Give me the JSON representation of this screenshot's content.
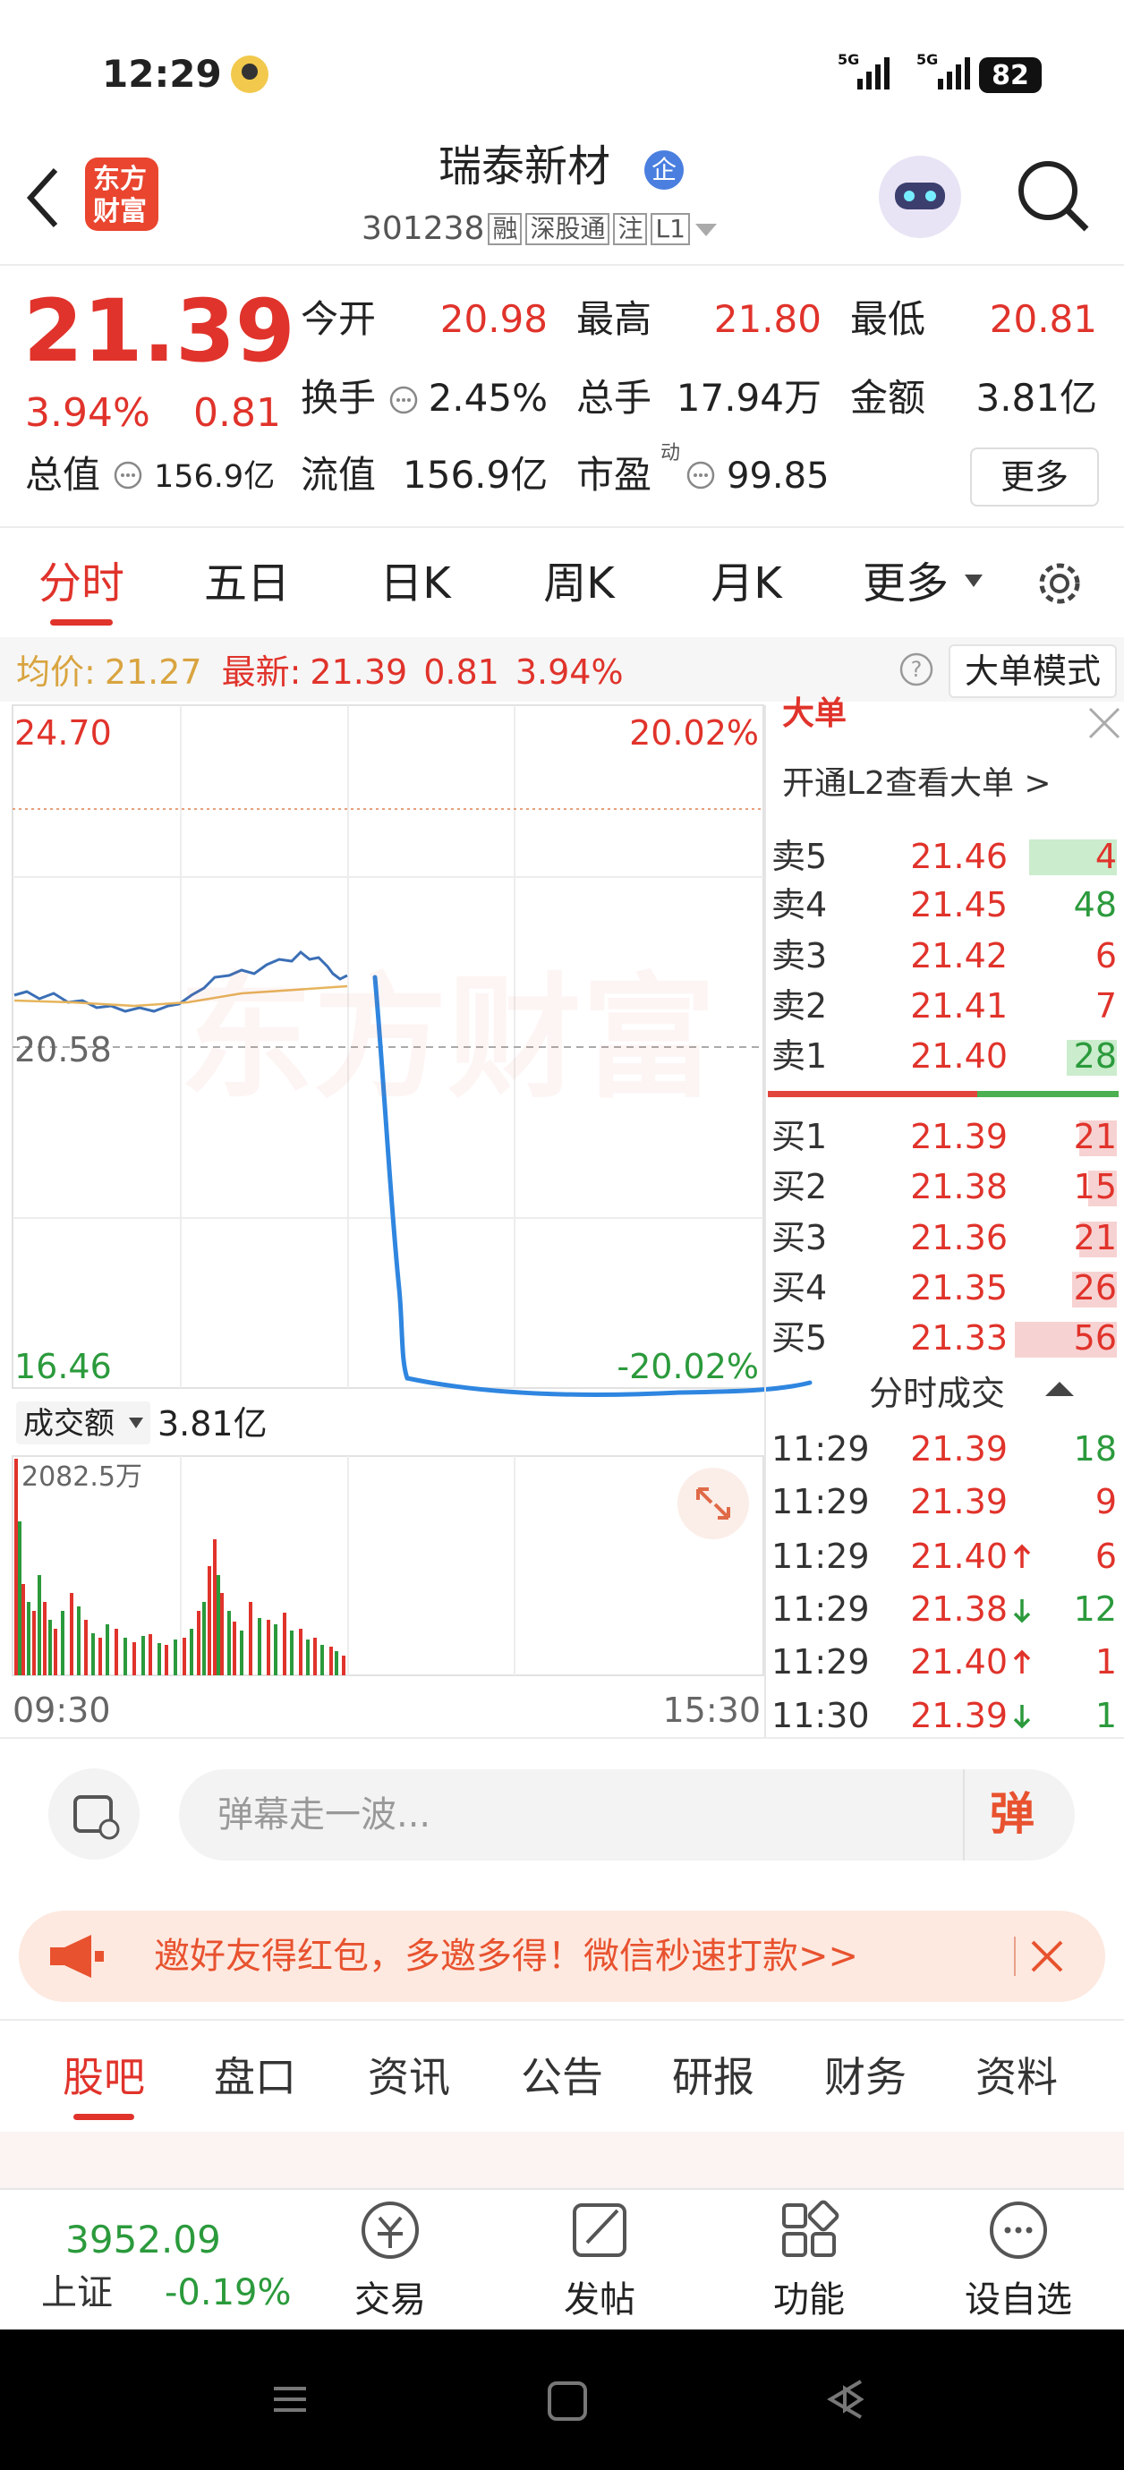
{
  "status": {
    "time": "12:29",
    "battery": "82"
  },
  "header": {
    "logo": [
      "东方",
      "财富"
    ],
    "title": "瑞泰新材",
    "badge": "企",
    "code": "301238",
    "tags": [
      "融",
      "深股通",
      "注",
      "L1"
    ]
  },
  "quote": {
    "price": "21.39",
    "change_pct": "3.94%",
    "change": "0.81",
    "stats": [
      {
        "label": "今开",
        "value": "20.98"
      },
      {
        "label": "最高",
        "value": "21.80"
      },
      {
        "label": "最低",
        "value": "20.81"
      },
      {
        "label": "换手",
        "value": "2.45%"
      },
      {
        "label": "总手",
        "value": "17.94万"
      },
      {
        "label": "金额",
        "value": "3.81亿"
      },
      {
        "label": "总值",
        "value": "156.9亿"
      },
      {
        "label": "流值",
        "value": "156.9亿"
      },
      {
        "label": "市盈",
        "value": "99.85"
      }
    ],
    "pe_note": "动",
    "more": "更多"
  },
  "tabs": [
    "分时",
    "五日",
    "日K",
    "周K",
    "月K",
    "更多"
  ],
  "info": {
    "avg_label": "均价:",
    "avg": "21.27",
    "last_label": "最新:",
    "last": "21.39",
    "change": "0.81",
    "pct": "3.94%",
    "mode": "大单模式"
  },
  "chart": {
    "top_price": "24.70",
    "top_pct": "20.02%",
    "mid_price": "20.58",
    "bottom_price": "16.46",
    "bottom_pct": "-20.02%",
    "watermark": "东方财富",
    "volume_label": "成交额",
    "volume": "3.81亿",
    "volume_max": "2082.5万",
    "time_start": "09:30",
    "time_end": "15:30"
  },
  "order_book": {
    "title": "大单",
    "l2": "开通L2查看大单 >",
    "asks": [
      [
        "卖5",
        "21.46",
        "4"
      ],
      [
        "卖4",
        "21.45",
        "48"
      ],
      [
        "卖3",
        "21.42",
        "6"
      ],
      [
        "卖2",
        "21.41",
        "7"
      ],
      [
        "卖1",
        "21.40",
        "28"
      ]
    ],
    "bids": [
      [
        "买1",
        "21.39",
        "21"
      ],
      [
        "买2",
        "21.38",
        "15"
      ],
      [
        "买3",
        "21.36",
        "21"
      ],
      [
        "买4",
        "21.35",
        "26"
      ],
      [
        "买5",
        "21.33",
        "56"
      ]
    ]
  },
  "trades": {
    "title": "分时成交",
    "rows": [
      [
        "11:29",
        "21.39",
        "18"
      ],
      [
        "11:29",
        "21.39",
        "9"
      ],
      [
        "11:29",
        "21.40",
        "6"
      ],
      [
        "11:29",
        "21.38",
        "12"
      ],
      [
        "11:29",
        "21.40",
        "1"
      ],
      [
        "11:30",
        "21.39",
        "1"
      ]
    ]
  },
  "comment": {
    "placeholder": "弹幕走一波...",
    "button": "弹"
  },
  "banner": "邀好友得红包，多邀多得！微信秒速打款>>",
  "bottom_tabs": [
    "股吧",
    "盘口",
    "资讯",
    "公告",
    "研报",
    "财务",
    "资料"
  ],
  "footer": {
    "index_value": "3952.09",
    "index_name": "上证",
    "index_change": "-0.19%",
    "actions": [
      "交易",
      "发帖",
      "功能",
      "设自选"
    ]
  }
}
